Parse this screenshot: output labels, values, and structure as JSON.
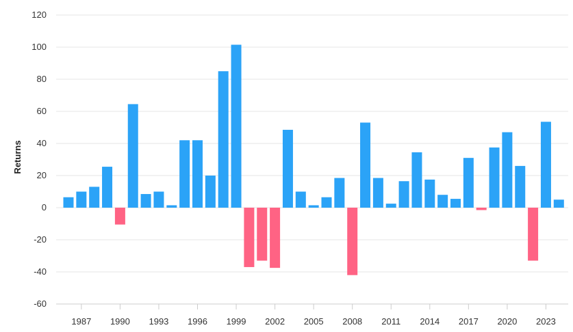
{
  "chart_data": {
    "type": "bar",
    "title": "",
    "xlabel": "",
    "ylabel": "Returns",
    "ylim": [
      -60,
      120
    ],
    "yticks": [
      -60,
      -40,
      -20,
      0,
      20,
      40,
      60,
      80,
      100,
      120
    ],
    "grid": true,
    "legend": "none",
    "colors": {
      "positive": "#2ba3f7",
      "negative": "#ff6384",
      "grid": "#e6e6e6",
      "axis": "#cccccc"
    },
    "categories": [
      "1986",
      "1987",
      "1988",
      "1989",
      "1990",
      "1991",
      "1992",
      "1993",
      "1994",
      "1995",
      "1996",
      "1997",
      "1998",
      "1999",
      "2000",
      "2001",
      "2002",
      "2003",
      "2004",
      "2005",
      "2006",
      "2007",
      "2008",
      "2009",
      "2010",
      "2011",
      "2012",
      "2013",
      "2014",
      "2015",
      "2016",
      "2017",
      "2018",
      "2019",
      "2020",
      "2021",
      "2022",
      "2023",
      "2024"
    ],
    "values": [
      6.5,
      10,
      13,
      25.5,
      -10.5,
      64.5,
      8.5,
      10,
      1.5,
      42,
      42,
      20,
      85,
      101.5,
      -37,
      -33,
      -37.5,
      48.5,
      10,
      1.5,
      6.5,
      18.5,
      -42,
      53,
      18.5,
      2.5,
      16.5,
      34.5,
      17.5,
      8,
      5.5,
      31,
      -1.5,
      37.5,
      47,
      26,
      -33,
      53.5,
      5
    ],
    "xtick_labels": [
      "1987",
      "1990",
      "1993",
      "1996",
      "1999",
      "2002",
      "2005",
      "2008",
      "2011",
      "2014",
      "2017",
      "2020",
      "2023"
    ]
  }
}
